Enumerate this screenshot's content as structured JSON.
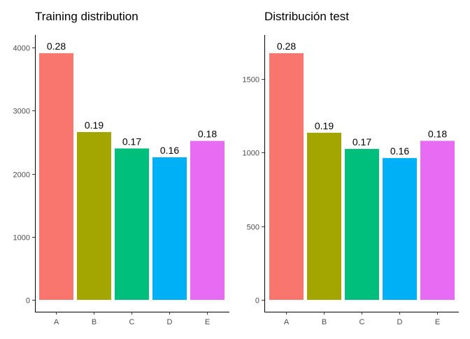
{
  "chart_data": [
    {
      "type": "bar",
      "title": "Training distribution",
      "categories": [
        "A",
        "B",
        "C",
        "D",
        "E"
      ],
      "values": [
        3910,
        2660,
        2400,
        2260,
        2520
      ],
      "labels": [
        "0.28",
        "0.19",
        "0.17",
        "0.16",
        "0.18"
      ],
      "colors": [
        "#F8766D",
        "#A3A500",
        "#00BF7D",
        "#00B0F6",
        "#E76BF3"
      ],
      "yticks": [
        0,
        1000,
        2000,
        3000,
        4000
      ],
      "ylim": [
        0,
        4000
      ],
      "xlabel": "",
      "ylabel": "",
      "grid": false,
      "legend": "none"
    },
    {
      "type": "bar",
      "title": "Distribución test",
      "categories": [
        "A",
        "B",
        "C",
        "D",
        "E"
      ],
      "values": [
        1675,
        1135,
        1025,
        963,
        1080
      ],
      "labels": [
        "0.28",
        "0.19",
        "0.17",
        "0.16",
        "0.18"
      ],
      "colors": [
        "#F8766D",
        "#A3A500",
        "#00BF7D",
        "#00B0F6",
        "#E76BF3"
      ],
      "yticks": [
        0,
        500,
        1000,
        1500
      ],
      "ylim": [
        0,
        1500
      ],
      "xlabel": "",
      "ylabel": "",
      "grid": false,
      "legend": "none"
    }
  ]
}
